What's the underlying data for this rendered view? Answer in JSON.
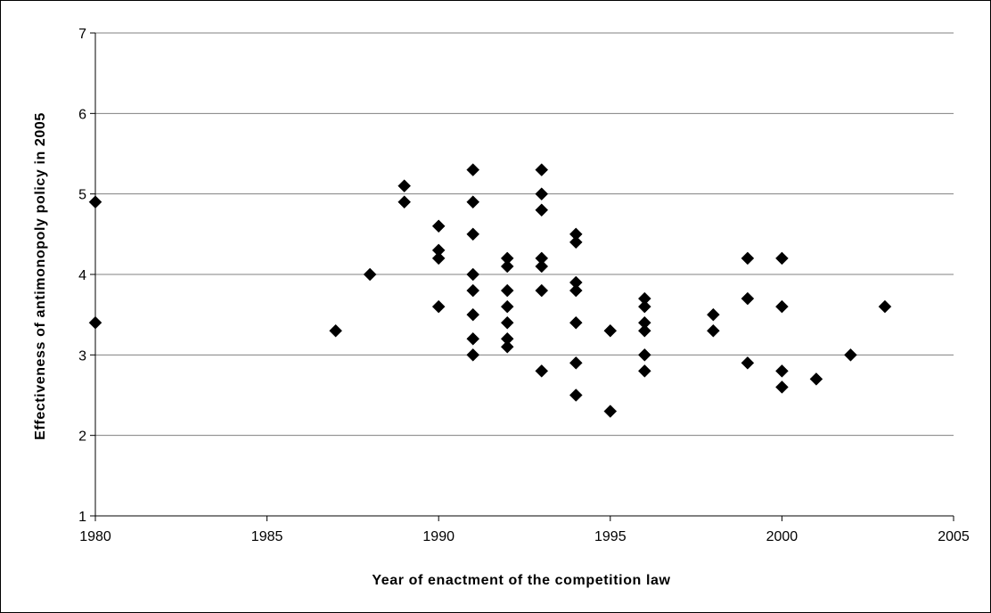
{
  "chart_data": {
    "type": "scatter",
    "title": "",
    "xlabel": "Year of enactment of the competition law",
    "ylabel": "Effectiveness of antimonopoly policy in 2005",
    "xlim": [
      1980,
      2005
    ],
    "ylim": [
      1,
      7
    ],
    "x_ticks": [
      "1980",
      "1985",
      "1990",
      "1995",
      "2000",
      "2005"
    ],
    "y_ticks": [
      "1",
      "2",
      "3",
      "4",
      "5",
      "6",
      "7"
    ],
    "grid": "horizontal",
    "legend": "none",
    "marker": "diamond",
    "marker_color": "#000000",
    "points": [
      {
        "x": 1980,
        "y": 4.9
      },
      {
        "x": 1980,
        "y": 3.4
      },
      {
        "x": 1987,
        "y": 3.3
      },
      {
        "x": 1988,
        "y": 4.0
      },
      {
        "x": 1989,
        "y": 5.1
      },
      {
        "x": 1989,
        "y": 4.9
      },
      {
        "x": 1990,
        "y": 4.6
      },
      {
        "x": 1990,
        "y": 4.3
      },
      {
        "x": 1990,
        "y": 4.2
      },
      {
        "x": 1990,
        "y": 3.6
      },
      {
        "x": 1991,
        "y": 5.3
      },
      {
        "x": 1991,
        "y": 4.9
      },
      {
        "x": 1991,
        "y": 4.5
      },
      {
        "x": 1991,
        "y": 4.0
      },
      {
        "x": 1991,
        "y": 3.8
      },
      {
        "x": 1991,
        "y": 3.5
      },
      {
        "x": 1991,
        "y": 3.2
      },
      {
        "x": 1991,
        "y": 3.0
      },
      {
        "x": 1992,
        "y": 4.2
      },
      {
        "x": 1992,
        "y": 4.1
      },
      {
        "x": 1992,
        "y": 3.8
      },
      {
        "x": 1992,
        "y": 3.6
      },
      {
        "x": 1992,
        "y": 3.4
      },
      {
        "x": 1992,
        "y": 3.2
      },
      {
        "x": 1992,
        "y": 3.1
      },
      {
        "x": 1993,
        "y": 5.3
      },
      {
        "x": 1993,
        "y": 5.0
      },
      {
        "x": 1993,
        "y": 4.8
      },
      {
        "x": 1993,
        "y": 4.2
      },
      {
        "x": 1993,
        "y": 4.1
      },
      {
        "x": 1993,
        "y": 3.8
      },
      {
        "x": 1993,
        "y": 2.8
      },
      {
        "x": 1994,
        "y": 4.5
      },
      {
        "x": 1994,
        "y": 4.4
      },
      {
        "x": 1994,
        "y": 3.9
      },
      {
        "x": 1994,
        "y": 3.8
      },
      {
        "x": 1994,
        "y": 3.4
      },
      {
        "x": 1994,
        "y": 2.9
      },
      {
        "x": 1994,
        "y": 2.5
      },
      {
        "x": 1995,
        "y": 3.3
      },
      {
        "x": 1995,
        "y": 2.3
      },
      {
        "x": 1996,
        "y": 3.7
      },
      {
        "x": 1996,
        "y": 3.6
      },
      {
        "x": 1996,
        "y": 3.4
      },
      {
        "x": 1996,
        "y": 3.3
      },
      {
        "x": 1996,
        "y": 3.0
      },
      {
        "x": 1996,
        "y": 2.8
      },
      {
        "x": 1998,
        "y": 3.5
      },
      {
        "x": 1998,
        "y": 3.3
      },
      {
        "x": 1999,
        "y": 4.2
      },
      {
        "x": 1999,
        "y": 3.7
      },
      {
        "x": 1999,
        "y": 2.9
      },
      {
        "x": 2000,
        "y": 4.2
      },
      {
        "x": 2000,
        "y": 3.6
      },
      {
        "x": 2000,
        "y": 2.8
      },
      {
        "x": 2000,
        "y": 2.6
      },
      {
        "x": 2001,
        "y": 2.7
      },
      {
        "x": 2002,
        "y": 3.0
      },
      {
        "x": 2003,
        "y": 3.6
      }
    ]
  }
}
